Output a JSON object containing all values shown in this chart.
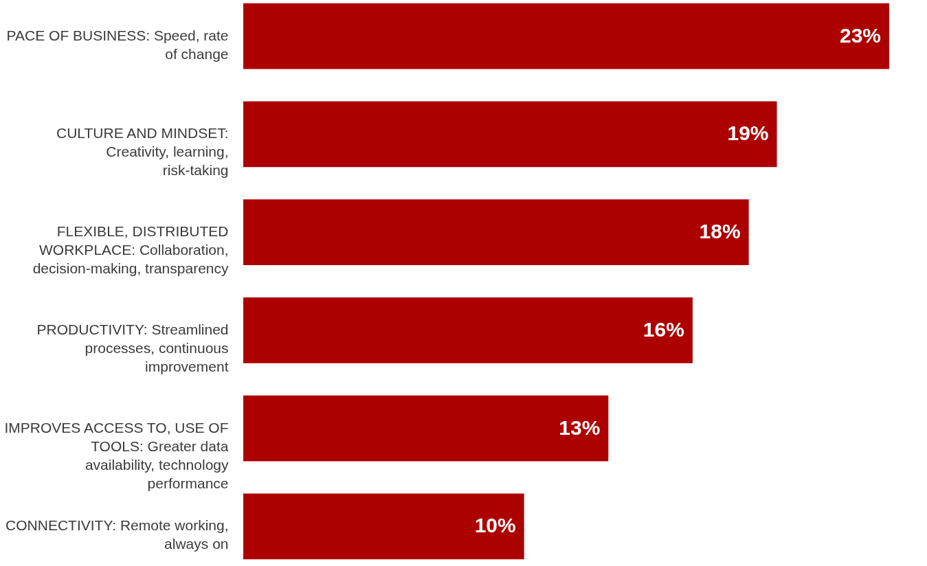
{
  "chart_data": {
    "type": "bar",
    "orientation": "horizontal",
    "tick_labels": "y",
    "categories": [
      "PACE OF BUSINESS: Speed, rate of change",
      "CULTURE AND MINDSET: Creativity, learning, risk-taking",
      "FLEXIBLE, DISTRIBUTED WORKPLACE: Collaboration, decision-making, transparency",
      "PRODUCTIVITY: Streamlined processes, continuous improvement",
      "IMPROVES ACCESS TO, USE OF TOOLS: Greater data availability, technology performance",
      "CONNECTIVITY: Remote working, always on"
    ],
    "values": [
      23,
      19,
      18,
      16,
      13,
      10
    ],
    "value_labels": [
      "23%",
      "19%",
      "18%",
      "16%",
      "13%",
      "10%"
    ],
    "color": "#ad0000"
  }
}
